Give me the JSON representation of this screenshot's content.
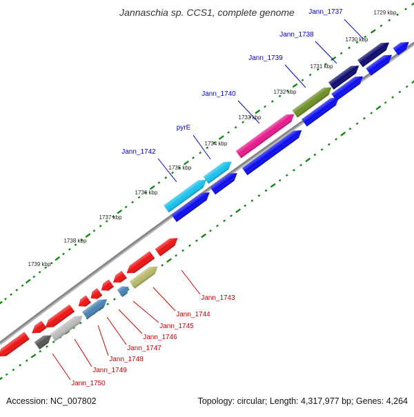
{
  "title": "Jannaschia sp. CCS1, complete genome",
  "accession": "Accession: NC_007802",
  "topology": "Topology: circular; Length: 4,317,977 bp; Genes: 4,264",
  "colors": {
    "backbone": "#888888",
    "ticks": "#118811",
    "label_blue": "#0000cc",
    "label_red": "#cc0000"
  },
  "scale_labels": [
    "1729 kbp",
    "1730 kbp",
    "1731 kbp",
    "1732 kbp",
    "1733 kbp",
    "1734 kbp",
    "1735 kbp",
    "1736 kbp",
    "1737 kbp",
    "1738 kbp",
    "1739 kbp"
  ],
  "genes_top": [
    {
      "name": "Jann_1737",
      "color": "#0a0a6e"
    },
    {
      "name": "Jann_1738",
      "color": "#0a0a6e"
    },
    {
      "name": "Jann_1739",
      "color": "#6b8e23"
    },
    {
      "name": "Jann_1740",
      "color": "#e8188c"
    },
    {
      "name": "pyrE",
      "color": "#19c2ee"
    },
    {
      "name": "Jann_1742",
      "color": "#19c2ee"
    }
  ],
  "genes_bottom": [
    {
      "name": "Jann_1743",
      "color": "#ee1111"
    },
    {
      "name": "Jann_1744",
      "color": "#b8b86a"
    },
    {
      "name": "Jann_1745",
      "color": "#4682b4"
    },
    {
      "name": "Jann_1746",
      "color": "#ee1111"
    },
    {
      "name": "Jann_1747",
      "color": "#ee1111"
    },
    {
      "name": "Jann_1748",
      "color": "#4682b4"
    },
    {
      "name": "Jann_1749",
      "color": "#555555"
    },
    {
      "name": "Jann_1750",
      "color": "#bbbbbb"
    }
  ]
}
